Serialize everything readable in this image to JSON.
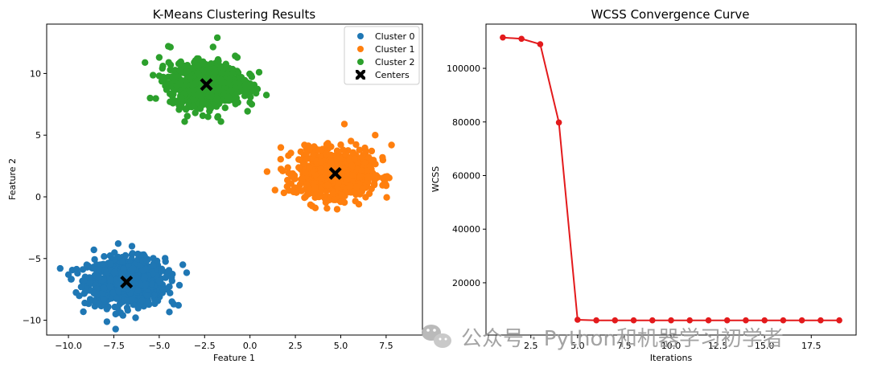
{
  "chart_data": [
    {
      "type": "scatter",
      "title": "K-Means Clustering Results",
      "xlabel": "Feature 1",
      "ylabel": "Feature 2",
      "xlim": [
        -11.2,
        9.5
      ],
      "ylim": [
        -11.2,
        14.0
      ],
      "xticks": [
        -10.0,
        -7.5,
        -5.0,
        -2.5,
        0.0,
        2.5,
        5.0,
        7.5
      ],
      "xtick_labels": [
        "−10.0",
        "−7.5",
        "−5.0",
        "−2.5",
        "0.0",
        "2.5",
        "5.0",
        "7.5"
      ],
      "yticks": [
        -10,
        -5,
        0,
        5,
        10
      ],
      "ytick_labels": [
        "−10",
        "−5",
        "0",
        "5",
        "10"
      ],
      "legend_position": "top-right",
      "series": [
        {
          "name": "Cluster 0",
          "color": "#1f77b4",
          "center": [
            -6.8,
            -6.9
          ],
          "spread": [
            1.05,
            0.95
          ],
          "points": [
            [
              -8.6,
              -4.3
            ],
            [
              -9.5,
              -6.2
            ],
            [
              -10.0,
              -6.3
            ],
            [
              -4.2,
              -8.7
            ],
            [
              -7.4,
              -9.5
            ],
            [
              -6.3,
              -9.8
            ],
            [
              -6.5,
              -4.0
            ],
            [
              -5.7,
              -5.2
            ],
            [
              -3.7,
              -5.5
            ],
            [
              -5.0,
              -6.8
            ],
            [
              -9.3,
              -7.3
            ],
            [
              -9.1,
              -8.6
            ]
          ]
        },
        {
          "name": "Cluster 1",
          "color": "#ff7f0e",
          "center": [
            4.7,
            1.9
          ],
          "spread": [
            1.0,
            0.9
          ],
          "points": [
            [
              1.7,
              4.0
            ],
            [
              1.8,
              2.1
            ],
            [
              5.2,
              5.9
            ],
            [
              6.9,
              5.0
            ],
            [
              7.8,
              4.2
            ],
            [
              7.3,
              3.2
            ],
            [
              7.5,
              0.9
            ],
            [
              3.6,
              -0.9
            ],
            [
              4.8,
              -1.0
            ],
            [
              6.0,
              -0.6
            ],
            [
              2.4,
              0.4
            ],
            [
              3.0,
              4.2
            ]
          ]
        },
        {
          "name": "Cluster 2",
          "color": "#2ca02c",
          "center": [
            -2.4,
            9.1
          ],
          "spread": [
            1.0,
            0.85
          ],
          "points": [
            [
              -4.5,
              12.2
            ],
            [
              -5.0,
              11.3
            ],
            [
              -5.0,
              9.8
            ],
            [
              -5.5,
              8.0
            ],
            [
              -3.6,
              6.1
            ],
            [
              -1.6,
              6.1
            ],
            [
              -1.8,
              12.9
            ],
            [
              0.5,
              10.1
            ],
            [
              -4.0,
              7.7
            ],
            [
              0.1,
              7.5
            ],
            [
              -4.8,
              10.6
            ],
            [
              -0.7,
              11.3
            ]
          ]
        },
        {
          "name": "Centers",
          "color": "#000000",
          "marker": "X",
          "points": [
            [
              -6.8,
              -6.9
            ],
            [
              4.7,
              1.9
            ],
            [
              -2.4,
              9.1
            ]
          ]
        }
      ]
    },
    {
      "type": "line",
      "title": "WCSS Convergence Curve",
      "xlabel": "Iterations",
      "ylabel": "WCSS",
      "color": "#e31a1c",
      "x": [
        1,
        2,
        3,
        4,
        5,
        6,
        7,
        8,
        9,
        10,
        11,
        12,
        13,
        14,
        15,
        16,
        17,
        18,
        19
      ],
      "y": [
        111500,
        111000,
        109000,
        79800,
        6200,
        6000,
        6000,
        6000,
        6000,
        6000,
        6000,
        6000,
        6000,
        6000,
        6000,
        6000,
        6000,
        6000,
        6000
      ],
      "xlim": [
        0.1,
        19.9
      ],
      "ylim": [
        500,
        116500
      ],
      "xticks": [
        2.5,
        5.0,
        7.5,
        10.0,
        12.5,
        15.0,
        17.5
      ],
      "xtick_labels": [
        "2.5",
        "5.0",
        "7.5",
        "10.0",
        "12.5",
        "15.0",
        "17.5"
      ],
      "yticks": [
        20000,
        40000,
        60000,
        80000,
        100000
      ],
      "ytick_labels": [
        "20000",
        "40000",
        "60000",
        "80000",
        "100000"
      ]
    }
  ],
  "watermark": {
    "text": "公众号 · Python和机器学习初学者",
    "icon": "wechat-icon"
  }
}
